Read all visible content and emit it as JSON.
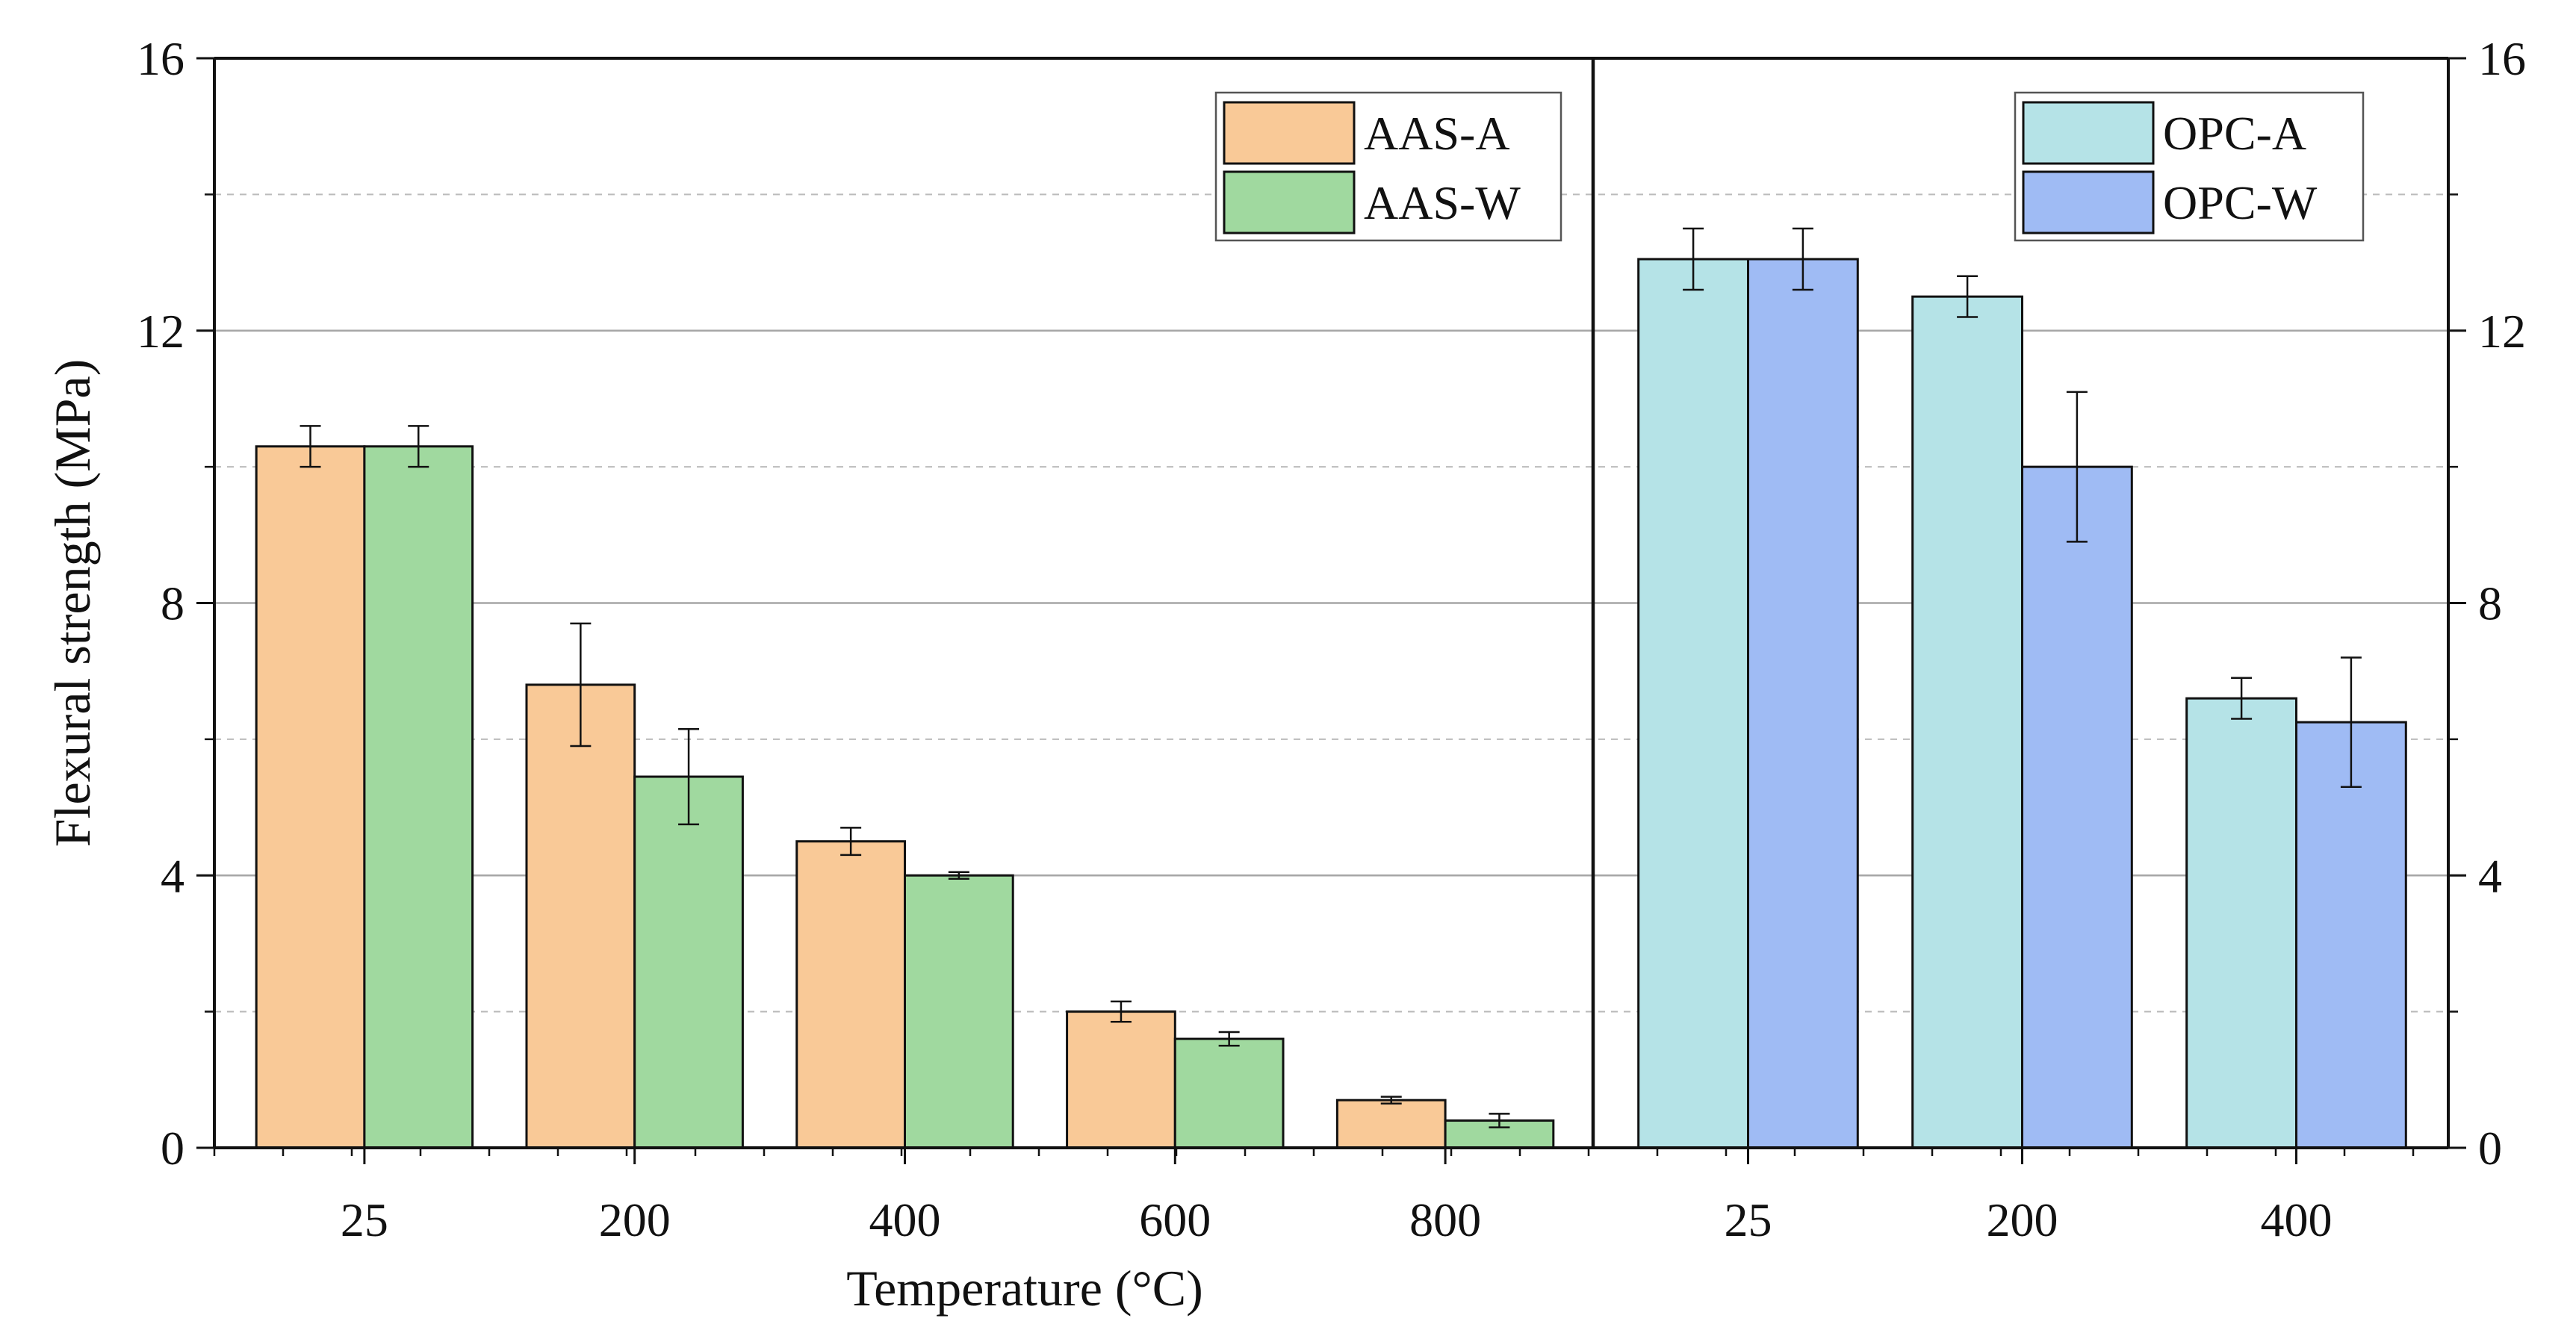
{
  "chart_data": {
    "type": "bar",
    "xlabel": "Temperature (°C)",
    "ylabel": "Flexural strength (MPa)",
    "ylim": [
      0,
      16
    ],
    "yticks": [
      "0",
      "4",
      "8",
      "12",
      "16"
    ],
    "grid": true,
    "panels": [
      {
        "name": "AAS",
        "categories": [
          "25",
          "200",
          "400",
          "600",
          "800"
        ],
        "legend_position": "top-right",
        "series": [
          {
            "name": "AAS-A",
            "color": "#F9C997",
            "values": [
              10.3,
              6.8,
              4.5,
              2.0,
              0.7
            ],
            "errors": [
              0.3,
              0.9,
              0.2,
              0.15,
              0.05
            ]
          },
          {
            "name": "AAS-W",
            "color": "#A0D99F",
            "values": [
              10.3,
              5.45,
              4.0,
              1.6,
              0.4
            ],
            "errors": [
              0.3,
              0.7,
              0.05,
              0.1,
              0.1
            ]
          }
        ]
      },
      {
        "name": "OPC",
        "categories": [
          "25",
          "200",
          "400"
        ],
        "legend_position": "top-right",
        "series": [
          {
            "name": "OPC-A",
            "color": "#B5E3E7",
            "values": [
              13.05,
              12.5,
              6.6
            ],
            "errors": [
              0.45,
              0.3,
              0.3
            ]
          },
          {
            "name": "OPC-W",
            "color": "#9FBBF4",
            "values": [
              13.05,
              10.0,
              6.25
            ],
            "errors": [
              0.45,
              1.1,
              0.95
            ]
          }
        ]
      }
    ]
  }
}
